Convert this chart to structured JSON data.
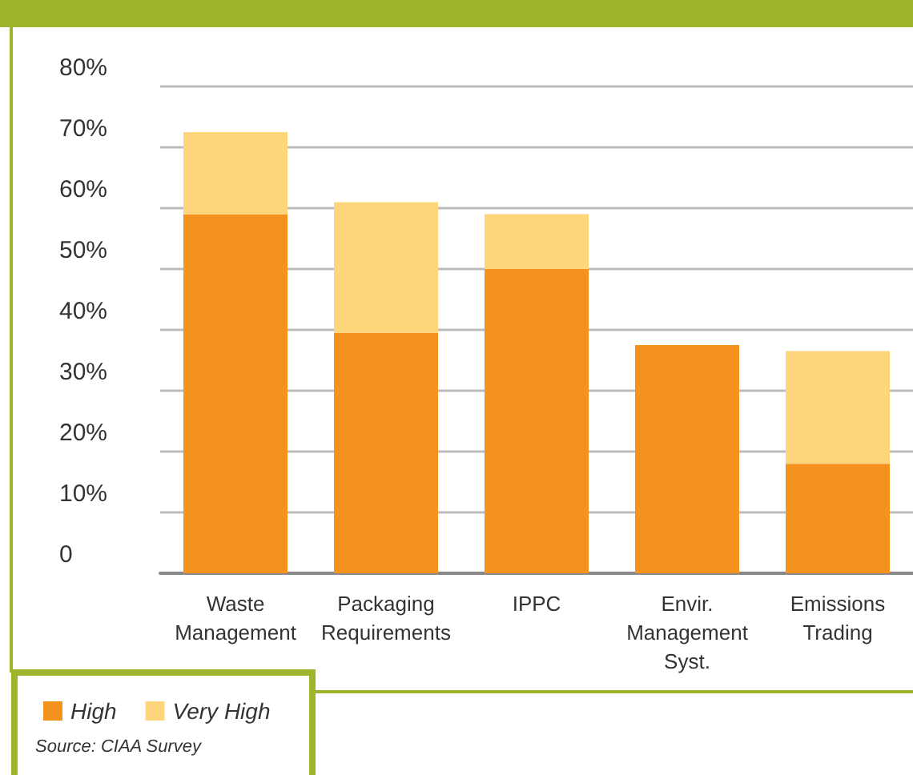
{
  "chart_data": {
    "type": "bar",
    "stacked": true,
    "categories": [
      "Waste\nManagement",
      "Packaging\nRequirements",
      "IPPC",
      "Envir.\nManagement\nSyst.",
      "Emissions\nTrading"
    ],
    "series": [
      {
        "name": "High",
        "color": "#f5921e",
        "values": [
          59,
          39.5,
          50,
          37.5,
          18
        ]
      },
      {
        "name": "Very High",
        "color": "#fdd67c",
        "values": [
          13.5,
          21.5,
          9,
          null,
          18.5
        ]
      }
    ],
    "ylim": [
      0,
      80
    ],
    "yticks": [
      {
        "value": 0,
        "label": "0"
      },
      {
        "value": 10,
        "label": "10%"
      },
      {
        "value": 20,
        "label": "20%"
      },
      {
        "value": 30,
        "label": "30%"
      },
      {
        "value": 40,
        "label": "40%"
      },
      {
        "value": 50,
        "label": "50%"
      },
      {
        "value": 60,
        "label": "60%"
      },
      {
        "value": 70,
        "label": "70%"
      },
      {
        "value": 80,
        "label": "80%"
      }
    ],
    "grid": "y",
    "legend": "bottom left",
    "annotations": [
      "Source: CIAA Survey"
    ]
  }
}
